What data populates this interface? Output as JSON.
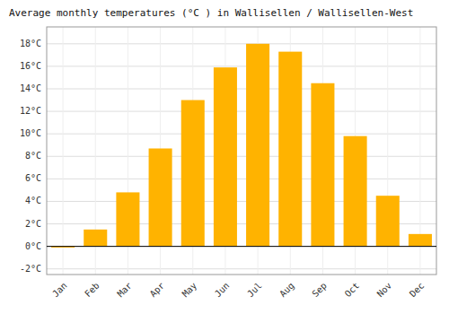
{
  "chart_data": {
    "type": "bar",
    "title": "Average monthly temperatures (°C ) in Wallisellen / Wallisellen-West",
    "categories": [
      "Jan",
      "Feb",
      "Mar",
      "Apr",
      "May",
      "Jun",
      "Jul",
      "Aug",
      "Sep",
      "Oct",
      "Nov",
      "Dec"
    ],
    "values": [
      -0.1,
      1.5,
      4.8,
      8.7,
      13.0,
      15.9,
      18.0,
      17.3,
      14.5,
      9.8,
      4.5,
      1.1
    ],
    "color": "#FFB300",
    "ylim": [
      -2.5,
      19.5
    ],
    "yticks": [
      {
        "value": -2,
        "label": "-2°C"
      },
      {
        "value": 0,
        "label": "0°C"
      },
      {
        "value": 2,
        "label": "2°C"
      },
      {
        "value": 4,
        "label": "4°C"
      },
      {
        "value": 6,
        "label": "6°C"
      },
      {
        "value": 8,
        "label": "8°C"
      },
      {
        "value": 10,
        "label": "10°C"
      },
      {
        "value": 12,
        "label": "12°C"
      },
      {
        "value": 14,
        "label": "14°C"
      },
      {
        "value": 16,
        "label": "16°C"
      },
      {
        "value": 18,
        "label": "18°C"
      }
    ],
    "grid": true
  }
}
